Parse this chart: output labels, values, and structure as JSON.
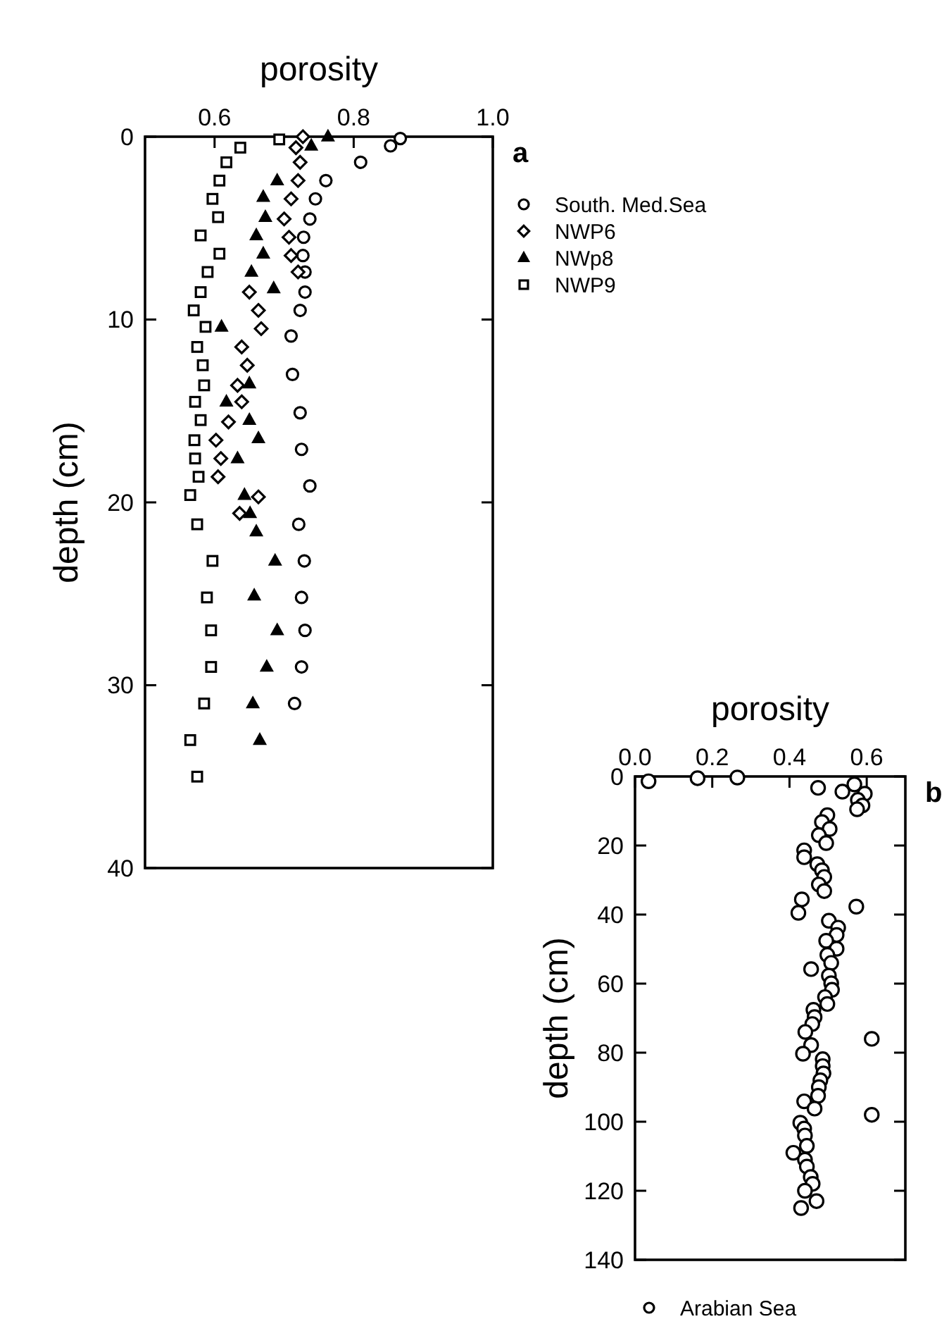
{
  "chart_data": [
    {
      "type": "scatter",
      "xlabel": "porosity",
      "ylabel": "depth (cm)",
      "xlim": [
        0.5,
        1.0
      ],
      "xticks": [
        0.6,
        0.8,
        {
          "value": 1.0,
          "label": "1.0"
        }
      ],
      "ylim": [
        40,
        0
      ],
      "yticks": [
        0,
        10,
        20,
        30,
        40
      ],
      "grid": false,
      "legend": "right",
      "annotations": [
        "a"
      ],
      "series": [
        {
          "name": "South. Med.Sea",
          "marker": "circle",
          "color": "#000000",
          "x": [
            0.867,
            0.853,
            0.81,
            0.76,
            0.745,
            0.737,
            0.728,
            0.727,
            0.73,
            0.73,
            0.723,
            0.71,
            0.712,
            0.723,
            0.725,
            0.737,
            0.721,
            0.729,
            0.725,
            0.73,
            0.725,
            0.715
          ],
          "values": [
            0.1,
            0.5,
            1.4,
            2.4,
            3.4,
            4.5,
            5.5,
            6.5,
            7.4,
            8.5,
            9.5,
            10.9,
            13.0,
            15.1,
            17.1,
            19.1,
            21.2,
            23.2,
            25.2,
            27,
            29,
            31
          ]
        },
        {
          "name": "NWP6",
          "marker": "diamond",
          "color": "#000000",
          "x": [
            0.727,
            0.717,
            0.723,
            0.72,
            0.71,
            0.7,
            0.707,
            0.71,
            0.72,
            0.65,
            0.663,
            0.667,
            0.639,
            0.647,
            0.633,
            0.639,
            0.62,
            0.602,
            0.609,
            0.605,
            0.663,
            0.636
          ],
          "values": [
            0,
            0.6,
            1.4,
            2.4,
            3.4,
            4.5,
            5.5,
            6.5,
            7.4,
            8.5,
            9.5,
            10.5,
            11.5,
            12.5,
            13.6,
            14.5,
            15.6,
            16.6,
            17.6,
            18.6,
            19.7,
            20.6
          ]
        },
        {
          "name": "NWp8",
          "marker": "triangle",
          "color": "#000000",
          "x": [
            0.763,
            0.739,
            0.69,
            0.67,
            0.673,
            0.66,
            0.67,
            0.653,
            0.685,
            0.61,
            0.65,
            0.617,
            0.65,
            0.663,
            0.633,
            0.643,
            0.651,
            0.66,
            0.687,
            0.657,
            0.69,
            0.675,
            0.655,
            0.665
          ],
          "values": [
            0,
            0.5,
            2.4,
            3.3,
            4.4,
            5.4,
            6.4,
            7.4,
            8.3,
            10.4,
            13.5,
            14.5,
            15.5,
            16.5,
            17.6,
            19.6,
            20.6,
            21.6,
            23.2,
            25.1,
            27,
            29,
            31,
            33
          ]
        },
        {
          "name": "NWP9",
          "marker": "square",
          "color": "#000000",
          "x": [
            0.693,
            0.637,
            0.617,
            0.607,
            0.597,
            0.605,
            0.58,
            0.607,
            0.59,
            0.58,
            0.57,
            0.587,
            0.575,
            0.583,
            0.585,
            0.572,
            0.58,
            0.571,
            0.572,
            0.577,
            0.565,
            0.575,
            0.597,
            0.589,
            0.595,
            0.595,
            0.585,
            0.565,
            0.575
          ],
          "values": [
            0.15,
            0.6,
            1.4,
            2.4,
            3.4,
            4.4,
            5.4,
            6.4,
            7.4,
            8.5,
            9.5,
            10.4,
            11.5,
            12.5,
            13.6,
            14.5,
            15.5,
            16.6,
            17.6,
            18.6,
            19.6,
            21.2,
            23.2,
            25.2,
            27,
            29,
            31,
            33,
            35
          ]
        }
      ]
    },
    {
      "type": "scatter",
      "xlabel": "porosity",
      "ylabel": "depth (cm)",
      "xlim": [
        0,
        0.7
      ],
      "xticks": [
        {
          "value": 0,
          "label": "0.0"
        },
        0.2,
        0.4,
        0.6
      ],
      "ylim": [
        140,
        0
      ],
      "yticks": [
        0,
        20,
        40,
        60,
        80,
        100,
        120,
        140
      ],
      "grid": false,
      "legend": "bottom",
      "annotations": [
        "b"
      ],
      "series": [
        {
          "name": "Arabian Sea",
          "marker": "circle",
          "color": "#000000",
          "x": [
            0.035,
            0.162,
            0.265,
            0.474,
            0.537,
            0.568,
            0.595,
            0.577,
            0.589,
            0.575,
            0.498,
            0.484,
            0.504,
            0.476,
            0.495,
            0.438,
            0.438,
            0.472,
            0.484,
            0.49,
            0.476,
            0.49,
            0.432,
            0.423,
            0.573,
            0.502,
            0.526,
            0.522,
            0.495,
            0.522,
            0.498,
            0.508,
            0.456,
            0.502,
            0.508,
            0.51,
            0.492,
            0.498,
            0.462,
            0.465,
            0.459,
            0.441,
            0.613,
            0.456,
            0.435,
            0.486,
            0.486,
            0.488,
            0.48,
            0.476,
            0.474,
            0.438,
            0.465,
            0.613,
            0.428,
            0.438,
            0.44,
            0.445,
            0.41,
            0.44,
            0.445,
            0.455,
            0.46,
            0.44,
            0.47,
            0.43
          ],
          "values": [
            1.4,
            0.5,
            0.3,
            3.3,
            4.4,
            2.3,
            5,
            6.8,
            8.4,
            9.5,
            11.2,
            13.2,
            15.2,
            17,
            19.3,
            21.4,
            23.4,
            25.4,
            27.2,
            29.1,
            31.3,
            33.2,
            35.6,
            39.5,
            37.7,
            41.8,
            43.8,
            45.9,
            47.6,
            49.9,
            51.7,
            54,
            55.8,
            57.7,
            59.9,
            61.8,
            63.9,
            65.9,
            67.6,
            69.7,
            71.7,
            74,
            76,
            77.8,
            80.3,
            81.9,
            83.9,
            86,
            88,
            90,
            92.5,
            94.1,
            96.2,
            98,
            100.3,
            102,
            104,
            107,
            109,
            111,
            113,
            116,
            118,
            120,
            123,
            125
          ]
        }
      ]
    }
  ]
}
